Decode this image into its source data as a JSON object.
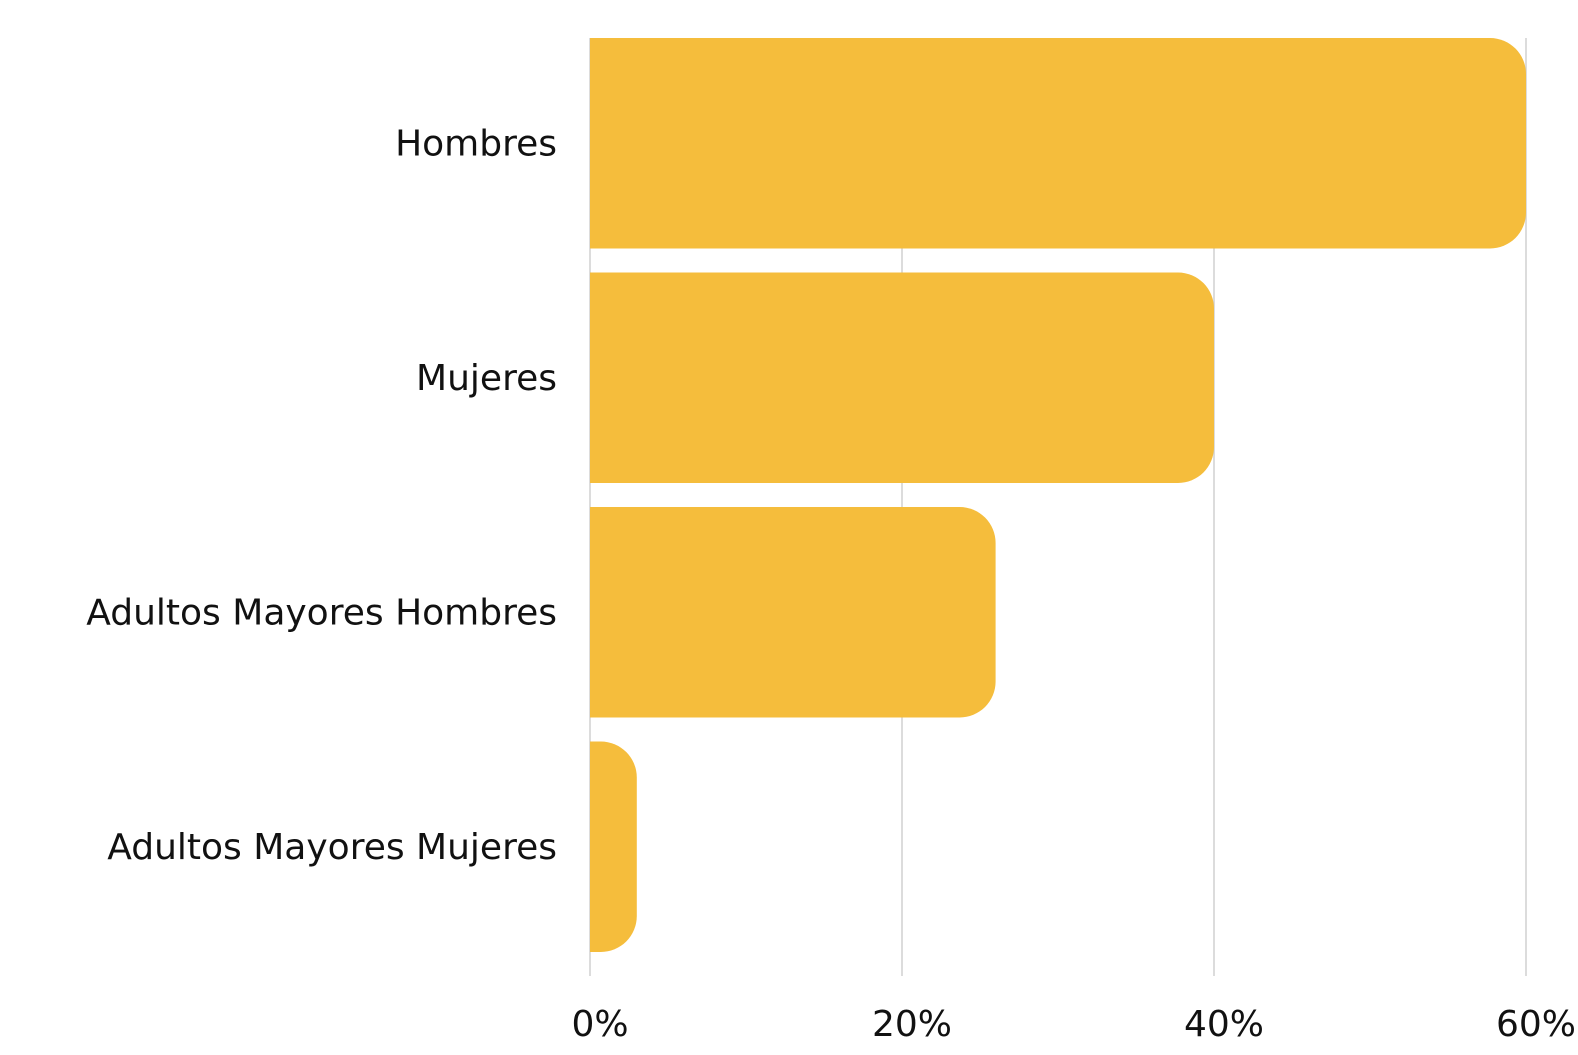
{
  "chart_data": {
    "type": "bar",
    "orientation": "horizontal",
    "categories": [
      "Hombres",
      "Mujeres",
      "Adultos Mayores Hombres",
      "Adultos Mayores Mujeres"
    ],
    "values": [
      60,
      40,
      26,
      3
    ],
    "color": "#f5bd3c",
    "xlim": [
      0,
      60
    ],
    "xticks": [
      {
        "value": 0,
        "label": "0%"
      },
      {
        "value": 20,
        "label": "20%"
      },
      {
        "value": 40,
        "label": "40%"
      },
      {
        "value": 60,
        "label": "60%"
      }
    ],
    "grid": true
  }
}
